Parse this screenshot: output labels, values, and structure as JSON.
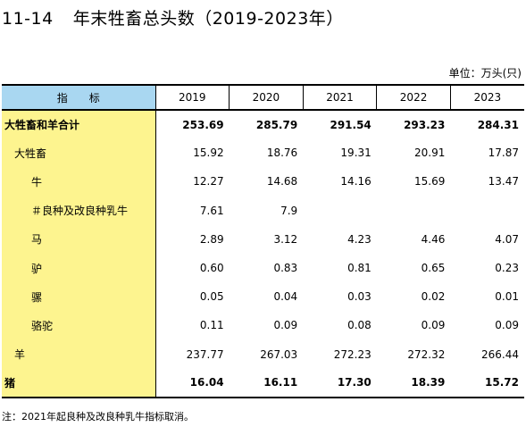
{
  "title": {
    "number": "11-14",
    "text": "年末牲畜总头数（2019-2023年）"
  },
  "unit": "单位：万头(只)",
  "table": {
    "header_label": "指　　标",
    "years": [
      "2019",
      "2020",
      "2021",
      "2022",
      "2023"
    ],
    "rows": [
      {
        "label": "大牲畜和羊合计",
        "indent": 0,
        "bold": true,
        "values": [
          "253.69",
          "285.79",
          "291.54",
          "293.23",
          "284.31"
        ]
      },
      {
        "label": "大牲畜",
        "indent": 1,
        "bold": false,
        "values": [
          "15.92",
          "18.76",
          "19.31",
          "20.91",
          "17.87"
        ]
      },
      {
        "label": "牛",
        "indent": 2,
        "bold": false,
        "values": [
          "12.27",
          "14.68",
          "14.16",
          "15.69",
          "13.47"
        ]
      },
      {
        "label": "＃良种及改良种乳牛",
        "indent": 2,
        "bold": false,
        "values": [
          "7.61",
          "7.9",
          "",
          "",
          ""
        ]
      },
      {
        "label": "马",
        "indent": 2,
        "bold": false,
        "values": [
          "2.89",
          "3.12",
          "4.23",
          "4.46",
          "4.07"
        ]
      },
      {
        "label": "驴",
        "indent": 2,
        "bold": false,
        "values": [
          "0.60",
          "0.83",
          "0.81",
          "0.65",
          "0.23"
        ]
      },
      {
        "label": "骡",
        "indent": 2,
        "bold": false,
        "values": [
          "0.05",
          "0.04",
          "0.03",
          "0.02",
          "0.01"
        ]
      },
      {
        "label": "骆驼",
        "indent": 2,
        "bold": false,
        "values": [
          "0.11",
          "0.09",
          "0.08",
          "0.09",
          "0.09"
        ]
      },
      {
        "label": "羊",
        "indent": 1,
        "bold": false,
        "values": [
          "237.77",
          "267.03",
          "272.23",
          "272.32",
          "266.44"
        ]
      },
      {
        "label": "猪",
        "indent": 0,
        "bold": true,
        "values": [
          "16.04",
          "16.11",
          "17.30",
          "18.39",
          "15.72"
        ]
      }
    ]
  },
  "note": "注：2021年起良种及改良种乳牛指标取消。",
  "colors": {
    "header_label_bg": "#a9d7f1",
    "row_label_bg": "#fdf48f"
  }
}
